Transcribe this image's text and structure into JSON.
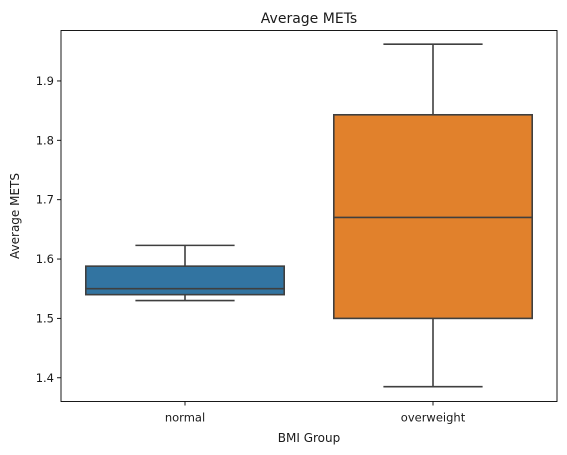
{
  "chart_data": {
    "type": "box",
    "title": "Average METs",
    "xlabel": "BMI Group",
    "ylabel": "Average METS",
    "categories": [
      "normal",
      "overweight"
    ],
    "series": [
      {
        "category": "normal",
        "color": "#3274a1",
        "whisker_low": 1.53,
        "q1": 1.54,
        "median": 1.55,
        "q3": 1.588,
        "whisker_high": 1.623
      },
      {
        "category": "overweight",
        "color": "#e1812c",
        "whisker_low": 1.385,
        "q1": 1.5,
        "median": 1.67,
        "q3": 1.843,
        "whisker_high": 1.962
      }
    ],
    "ylim": [
      1.36,
      1.985
    ],
    "yticks": [
      "1.4",
      "1.5",
      "1.6",
      "1.7",
      "1.8",
      "1.9"
    ],
    "grid": false,
    "edge_color": "#3f3f3f"
  }
}
